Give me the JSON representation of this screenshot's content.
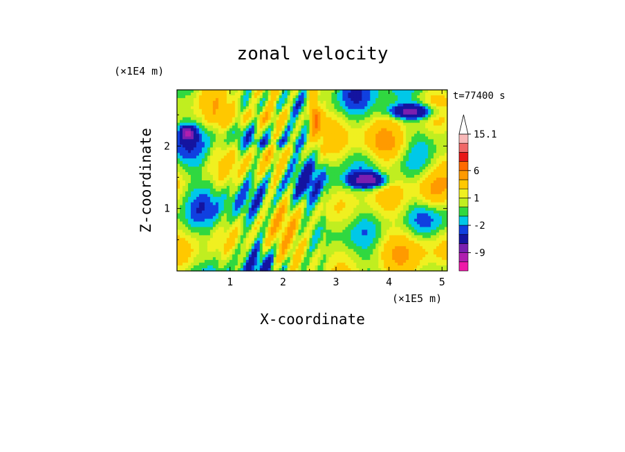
{
  "chart_data": {
    "type": "heatmap",
    "title": "zonal velocity",
    "xlabel": "X-coordinate",
    "ylabel": "Z-coordinate",
    "x_unit": "(×1E5 m)",
    "y_unit": "(×1E4 m)",
    "time_label": "t=77400 s",
    "xlim": [
      0,
      5.1
    ],
    "ylim": [
      0,
      2.9
    ],
    "x_ticks": [
      1,
      2,
      3,
      4,
      5
    ],
    "y_ticks": [
      1,
      2
    ],
    "x_tick_labels": [
      "1",
      "2",
      "3",
      "4",
      "5"
    ],
    "y_tick_labels": [
      "1",
      "2"
    ],
    "colorbar": {
      "labels": [
        {
          "value": 15.1,
          "text": "15.1"
        },
        {
          "value": 6,
          "text": "6"
        },
        {
          "value": 1,
          "text": "1"
        },
        {
          "value": -2,
          "text": "-2"
        },
        {
          "value": -9,
          "text": "-9"
        }
      ],
      "levels": [
        -16,
        -12,
        -9,
        -6,
        -3,
        -2,
        -1,
        0,
        1,
        2,
        4,
        6,
        8,
        10,
        13,
        15.1
      ],
      "colors": [
        "#ee1aa8",
        "#b01eaf",
        "#7a1fb0",
        "#1414a0",
        "#1040e0",
        "#00c8e8",
        "#30d840",
        "#c0ee20",
        "#f0f020",
        "#ffc800",
        "#ff9a00",
        "#ff6a00",
        "#e81818",
        "#f06868",
        "#f8b8b8"
      ]
    },
    "features": [
      {
        "x": 4.45,
        "z": 2.55,
        "u": -8,
        "sx": 0.45,
        "sz": 0.12
      },
      {
        "x": 3.6,
        "z": 1.45,
        "u": -8,
        "sx": 0.35,
        "sz": 0.12
      },
      {
        "x": 0.2,
        "z": 2.2,
        "u": -9,
        "sx": 0.12,
        "sz": 0.1
      },
      {
        "x": 4.0,
        "z": 2.0,
        "u": 5,
        "sx": 0.5,
        "sz": 0.3
      },
      {
        "x": 1.6,
        "z": 2.45,
        "u": 4,
        "sx": 0.9,
        "sz": 0.18
      },
      {
        "x": 1.8,
        "z": 2.05,
        "u": -2.5,
        "sx": 0.5,
        "sz": 0.08
      },
      {
        "x": 4.8,
        "z": 1.25,
        "u": 4,
        "sx": 0.35,
        "sz": 0.3
      },
      {
        "x": 2.4,
        "z": 0.3,
        "u": 2.5,
        "sx": 0.8,
        "sz": 0.25
      },
      {
        "x": 4.2,
        "z": 0.4,
        "u": 2,
        "sx": 0.9,
        "sz": 0.3
      },
      {
        "x": 2.6,
        "z": 2.5,
        "u": 6,
        "sx": 0.1,
        "sz": 0.3
      }
    ]
  }
}
